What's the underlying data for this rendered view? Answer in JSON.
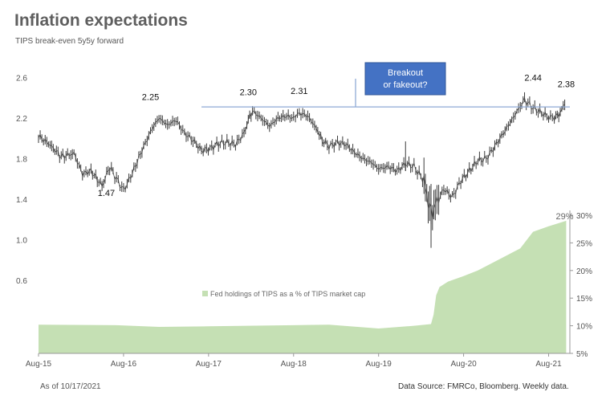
{
  "header": {
    "title": "Inflation expectations",
    "subtitle": "TIPS break-even 5y5y forward"
  },
  "footer": {
    "as_of": "As of 10/17/2021",
    "source": "Data Source: FMRCo, Bloomberg.  Weekly data."
  },
  "colors": {
    "price_bars": "#3a3a3a",
    "threshold_line": "#8eaad6",
    "fill_area": "#c5e0b4",
    "callout_bg": "#4472c4",
    "callout_text": "#ffffff"
  },
  "chart_data": {
    "type": "bar",
    "title": "Inflation expectations",
    "subtitle": "TIPS break-even 5y5y forward",
    "x_ticks": [
      "Aug-15",
      "Aug-16",
      "Aug-17",
      "Aug-18",
      "Aug-19",
      "Aug-20",
      "Aug-21"
    ],
    "x_range": [
      2015.583,
      2021.833
    ],
    "y_left": {
      "ticks": [
        "0.6",
        "1.0",
        "1.4",
        "1.8",
        "2.2",
        "2.6"
      ],
      "range": [
        0.6,
        2.6
      ]
    },
    "y_right": {
      "ticks": [
        "5%",
        "10%",
        "15%",
        "20%",
        "25%",
        "30%"
      ],
      "range": [
        5,
        30
      ]
    },
    "series": [
      {
        "name": "TIPS break-even 5y5y forward",
        "type": "ohlc-range",
        "axis": "left",
        "points": [
          [
            2015.583,
            2.02
          ],
          [
            2015.7,
            1.95
          ],
          [
            2015.85,
            1.82
          ],
          [
            2016.0,
            1.85
          ],
          [
            2016.1,
            1.65
          ],
          [
            2016.2,
            1.68
          ],
          [
            2016.33,
            1.53
          ],
          [
            2016.42,
            1.72
          ],
          [
            2016.5,
            1.6
          ],
          [
            2016.583,
            1.49
          ],
          [
            2016.667,
            1.62
          ],
          [
            2016.8,
            1.88
          ],
          [
            2016.92,
            2.1
          ],
          [
            2017.0,
            2.2
          ],
          [
            2017.1,
            2.13
          ],
          [
            2017.2,
            2.18
          ],
          [
            2017.3,
            2.05
          ],
          [
            2017.4,
            1.98
          ],
          [
            2017.5,
            1.88
          ],
          [
            2017.6,
            1.9
          ],
          [
            2017.7,
            1.95
          ],
          [
            2017.8,
            1.96
          ],
          [
            2017.9,
            1.94
          ],
          [
            2018.0,
            2.05
          ],
          [
            2018.05,
            2.18
          ],
          [
            2018.1,
            2.27
          ],
          [
            2018.2,
            2.2
          ],
          [
            2018.3,
            2.12
          ],
          [
            2018.4,
            2.2
          ],
          [
            2018.5,
            2.22
          ],
          [
            2018.583,
            2.2
          ],
          [
            2018.65,
            2.25
          ],
          [
            2018.75,
            2.22
          ],
          [
            2018.85,
            2.1
          ],
          [
            2018.92,
            1.98
          ],
          [
            2019.0,
            1.92
          ],
          [
            2019.1,
            1.96
          ],
          [
            2019.2,
            1.94
          ],
          [
            2019.3,
            1.86
          ],
          [
            2019.4,
            1.8
          ],
          [
            2019.5,
            1.76
          ],
          [
            2019.583,
            1.7
          ],
          [
            2019.7,
            1.72
          ],
          [
            2019.8,
            1.68
          ],
          [
            2019.9,
            1.75
          ],
          [
            2020.0,
            1.72
          ],
          [
            2020.1,
            1.6
          ],
          [
            2020.15,
            1.45
          ],
          [
            2020.2,
            1.25
          ],
          [
            2020.25,
            1.35
          ],
          [
            2020.35,
            1.5
          ],
          [
            2020.45,
            1.42
          ],
          [
            2020.55,
            1.58
          ],
          [
            2020.65,
            1.68
          ],
          [
            2020.75,
            1.78
          ],
          [
            2020.85,
            1.8
          ],
          [
            2020.95,
            1.92
          ],
          [
            2021.05,
            2.05
          ],
          [
            2021.15,
            2.18
          ],
          [
            2021.25,
            2.32
          ],
          [
            2021.3,
            2.38
          ],
          [
            2021.4,
            2.3
          ],
          [
            2021.5,
            2.25
          ],
          [
            2021.583,
            2.21
          ],
          [
            2021.65,
            2.2
          ],
          [
            2021.72,
            2.25
          ],
          [
            2021.79,
            2.38
          ]
        ]
      },
      {
        "name": "Fed holdings of TIPS as a % of TIPS market cap",
        "type": "area",
        "axis": "right",
        "points": [
          [
            2015.583,
            10.2
          ],
          [
            2016.5,
            10.1
          ],
          [
            2017.0,
            9.8
          ],
          [
            2017.583,
            9.9
          ],
          [
            2018.583,
            10.1
          ],
          [
            2019.0,
            10.2
          ],
          [
            2019.583,
            9.5
          ],
          [
            2020.0,
            10.0
          ],
          [
            2020.2,
            10.3
          ],
          [
            2020.23,
            12.0
          ],
          [
            2020.26,
            15.5
          ],
          [
            2020.3,
            17.0
          ],
          [
            2020.4,
            18.0
          ],
          [
            2020.583,
            19.0
          ],
          [
            2020.75,
            20.0
          ],
          [
            2021.0,
            22.0
          ],
          [
            2021.25,
            24.0
          ],
          [
            2021.4,
            27.0
          ],
          [
            2021.583,
            28.0
          ],
          [
            2021.75,
            28.8
          ],
          [
            2021.79,
            29.0
          ]
        ]
      }
    ],
    "threshold": {
      "value": 2.31,
      "from": 2017.5,
      "to": 2021.883
    },
    "annotations": [
      {
        "text": "1.47",
        "x": 2016.38,
        "y": 1.47
      },
      {
        "text": "2.25",
        "x": 2016.9,
        "y": 2.25
      },
      {
        "text": "2.30",
        "x": 2018.05,
        "y": 2.3
      },
      {
        "text": "2.31",
        "x": 2018.65,
        "y": 2.31
      },
      {
        "text": "2.44",
        "x": 2021.4,
        "y": 2.44
      },
      {
        "text": "2.38",
        "x": 2021.79,
        "y": 2.38
      },
      {
        "text": "29%",
        "x": 2021.8,
        "y": 29
      }
    ],
    "callout": {
      "line1": "Breakout",
      "line2": "or fakeout?"
    },
    "legend": "Fed holdings of TIPS as a % of TIPS market cap"
  }
}
